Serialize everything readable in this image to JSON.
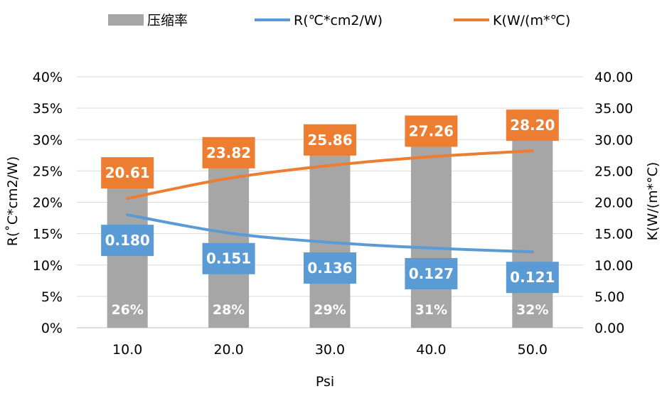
{
  "chart_data": {
    "type": "combo-bar-line",
    "categories": [
      "10.0",
      "20.0",
      "30.0",
      "40.0",
      "50.0"
    ],
    "xlabel": "Psi",
    "ylabel_left": "R(˚C*cm2/W)",
    "ylabel_right": "K(W/(m*°C)",
    "left_axis": {
      "min": 0,
      "max": 40,
      "step": 5,
      "ticks": [
        "0%",
        "5%",
        "10%",
        "15%",
        "20%",
        "25%",
        "30%",
        "35%",
        "40%"
      ]
    },
    "right_axis": {
      "min": 0,
      "max": 40,
      "step": 5,
      "ticks": [
        "0.00",
        "5.00",
        "10.00",
        "15.00",
        "20.00",
        "25.00",
        "30.00",
        "35.00",
        "40.00"
      ]
    },
    "grid": true,
    "legend_position": "top",
    "series": [
      {
        "name": "压缩率",
        "kind": "bar",
        "axis": "left",
        "color": "#a6a6a6",
        "values": [
          26,
          28,
          29,
          31,
          32
        ],
        "labels": [
          "26%",
          "28%",
          "29%",
          "31%",
          "32%"
        ]
      },
      {
        "name": "R(℃*cm2/W)",
        "kind": "line",
        "axis": "left",
        "scale_note": "plotted at value x 100 on left axis",
        "color": "#5b9bd5",
        "values": [
          0.18,
          0.151,
          0.136,
          0.127,
          0.121
        ],
        "labels": [
          "0.180",
          "0.151",
          "0.136",
          "0.127",
          "0.121"
        ]
      },
      {
        "name": "K(W/(m*℃)",
        "kind": "line",
        "axis": "right",
        "color": "#ed7d31",
        "values": [
          20.61,
          23.82,
          25.86,
          27.26,
          28.2
        ],
        "labels": [
          "20.61",
          "23.82",
          "25.86",
          "27.26",
          "28.20"
        ]
      }
    ]
  }
}
